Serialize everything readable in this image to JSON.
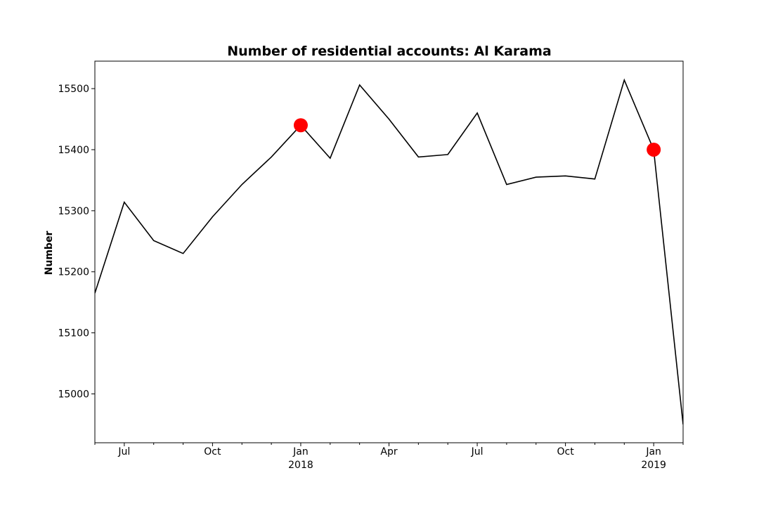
{
  "chart_data": {
    "type": "line",
    "title": "Number of residential accounts: Al Karama",
    "xlabel": "",
    "ylabel": "Number",
    "xlim": [
      "2017-06",
      "2019-02"
    ],
    "ylim": [
      14920,
      15545
    ],
    "grid": false,
    "legend": "none",
    "line_color": "#000000",
    "marker_color": "#ff0000",
    "x": [
      "2017-06",
      "2017-07",
      "2017-08",
      "2017-09",
      "2017-10",
      "2017-11",
      "2017-12",
      "2018-01",
      "2018-02",
      "2018-03",
      "2018-04",
      "2018-05",
      "2018-06",
      "2018-07",
      "2018-08",
      "2018-09",
      "2018-10",
      "2018-11",
      "2018-12",
      "2019-01",
      "2019-02"
    ],
    "series": [
      {
        "values": [
          15165,
          15314,
          15251,
          15230,
          15290,
          15343,
          15388,
          15440,
          15386,
          15506,
          15450,
          15388,
          15392,
          15460,
          15343,
          15355,
          15357,
          15352,
          15514,
          15400,
          14950
        ]
      }
    ],
    "highlight_points": [
      {
        "x": "2018-01",
        "y": 15440
      },
      {
        "x": "2019-01",
        "y": 15400
      }
    ],
    "y_ticks": [
      15000,
      15100,
      15200,
      15300,
      15400,
      15500
    ],
    "x_major_ticks": [
      {
        "x": "2017-07",
        "label": "Jul",
        "year": ""
      },
      {
        "x": "2017-10",
        "label": "Oct",
        "year": ""
      },
      {
        "x": "2018-01",
        "label": "Jan",
        "year": "2018"
      },
      {
        "x": "2018-04",
        "label": "Apr",
        "year": ""
      },
      {
        "x": "2018-07",
        "label": "Jul",
        "year": ""
      },
      {
        "x": "2018-10",
        "label": "Oct",
        "year": ""
      },
      {
        "x": "2019-01",
        "label": "Jan",
        "year": "2019"
      }
    ],
    "x_minor_ticks": [
      "2017-06",
      "2017-08",
      "2017-09",
      "2017-11",
      "2017-12",
      "2018-02",
      "2018-03",
      "2018-05",
      "2018-06",
      "2018-08",
      "2018-09",
      "2018-11",
      "2018-12",
      "2019-02"
    ]
  }
}
